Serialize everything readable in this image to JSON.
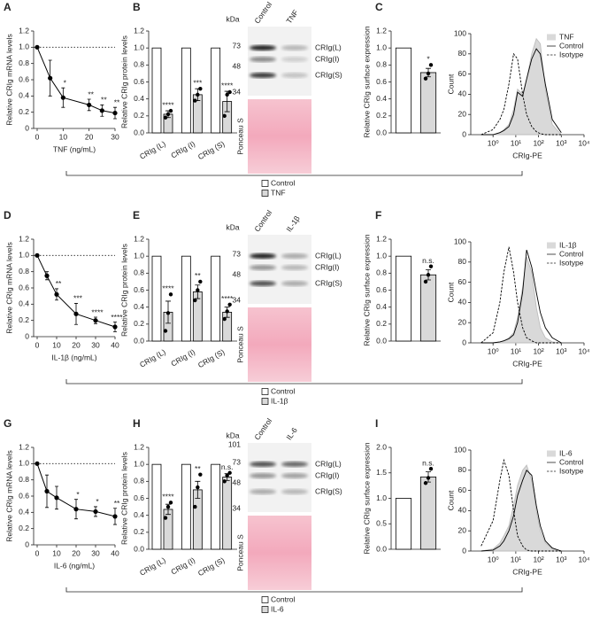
{
  "chart_data": [
    {
      "panel": "A",
      "type": "line",
      "x": [
        0,
        5,
        10,
        20,
        25,
        30
      ],
      "values": [
        1,
        0.62,
        0.38,
        0.29,
        0.22,
        0.19
      ],
      "errors": [
        0,
        0.22,
        0.12,
        0.07,
        0.07,
        0.07
      ],
      "annotations": [
        null,
        null,
        "*",
        "**",
        "**",
        "**"
      ],
      "color": "#000000",
      "reference_line": 1,
      "xlim": [
        0,
        30
      ],
      "xticks": [
        0,
        10,
        20,
        30
      ],
      "ylim": [
        0,
        1.2
      ],
      "yticks": [
        0,
        0.2,
        0.4,
        0.6,
        0.8,
        {
          "value": 1,
          "label": "1.0"
        },
        1.2
      ],
      "xlabel": "TNF (ng/mL)",
      "ylabel": "Relative CRIg mRNA levels"
    },
    {
      "panel": "B",
      "type": "bar",
      "categories": [
        "CRIg (L)",
        "CRIg (I)",
        "CRIg (S)"
      ],
      "series": [
        {
          "name": "Control",
          "color": "#ffffff",
          "values": [
            1,
            1,
            1
          ]
        },
        {
          "name": "TNF",
          "color": "#d9d9d9",
          "values": [
            0.22,
            0.45,
            0.37
          ],
          "errors": [
            0.04,
            0.07,
            0.12
          ],
          "points": [
            [
              0.18,
              0.22,
              0.26
            ],
            [
              0.38,
              0.45,
              0.52
            ],
            [
              0.2,
              0.45,
              0.48
            ]
          ],
          "annotations": [
            "****",
            "***",
            "****"
          ]
        }
      ],
      "ylim": [
        0,
        1.2
      ],
      "yticks": [
        {
          "value": 0,
          "label": "0.0"
        },
        0.2,
        0.4,
        0.6,
        0.8,
        {
          "value": 1,
          "label": "1.0"
        },
        1.2
      ],
      "ylabel": "Relative CRIg protein levels",
      "legend": "bottom"
    },
    {
      "panel": "C",
      "type": "bar",
      "categories": [
        null,
        null
      ],
      "values": [
        1,
        0.71
      ],
      "colors": [
        "#ffffff",
        "#d9d9d9"
      ],
      "errors": [
        null,
        0.05
      ],
      "points": [
        null,
        [
          0.64,
          0.7,
          0.8
        ]
      ],
      "annotations": [
        null,
        "*"
      ],
      "ylim": [
        0,
        1.2
      ],
      "yticks": [
        {
          "value": 0,
          "label": "0.0"
        },
        0.2,
        0.4,
        0.6,
        0.8,
        {
          "value": 1,
          "label": "1.0"
        },
        1.2
      ],
      "ylabel": "Relative CRIg surface expression"
    },
    {
      "type": "line",
      "xscale": "log",
      "x": [
        0.3,
        1,
        2,
        3,
        5,
        8,
        12,
        20,
        30,
        50,
        80,
        120,
        200,
        400,
        1000
      ],
      "series": [
        {
          "name": "TNF",
          "style": "area",
          "color": "#d9d9d9",
          "values": [
            0,
            0,
            2,
            5,
            10,
            25,
            45,
            40,
            55,
            80,
            95,
            90,
            45,
            10,
            0
          ]
        },
        {
          "name": "Control",
          "style": "solid",
          "color": "#000000",
          "values": [
            0,
            0,
            2,
            4,
            8,
            20,
            42,
            38,
            55,
            75,
            85,
            80,
            50,
            15,
            2
          ]
        },
        {
          "name": "Isotype",
          "style": "dashed",
          "color": "#000000",
          "values": [
            0,
            5,
            15,
            25,
            50,
            80,
            75,
            40,
            20,
            8,
            3,
            1,
            0,
            0,
            0
          ]
        }
      ],
      "xlim": [
        0.15,
        10000
      ],
      "xticks": [
        {
          "value": 1,
          "label": "10⁰"
        },
        {
          "value": 10,
          "label": "10¹"
        },
        {
          "value": 100,
          "label": "10²"
        },
        {
          "value": 1000,
          "label": "10³"
        },
        {
          "value": 10000,
          "label": "10⁴"
        }
      ],
      "ylim": [
        0,
        100
      ],
      "yticks": [
        0,
        20,
        40,
        60,
        80,
        100
      ],
      "xlabel": "CRIg-PE",
      "ylabel": "Count",
      "legend": "upper right"
    },
    {
      "panel": "D",
      "type": "line",
      "x": [
        0,
        5,
        10,
        20,
        30,
        40
      ],
      "values": [
        1,
        0.75,
        0.52,
        0.28,
        0.2,
        0.12
      ],
      "errors": [
        0,
        0.05,
        0.07,
        0.13,
        0.04,
        0.06
      ],
      "annotations": [
        null,
        null,
        "**",
        "***",
        "****",
        "****"
      ],
      "color": "#000000",
      "reference_line": 1,
      "xlim": [
        0,
        40
      ],
      "xticks": [
        0,
        10,
        20,
        30,
        40
      ],
      "ylim": [
        0,
        1.2
      ],
      "yticks": [
        0,
        0.2,
        0.4,
        0.6,
        0.8,
        {
          "value": 1,
          "label": "1.0"
        },
        1.2
      ],
      "xlabel": "IL-1β (ng/mL)",
      "ylabel": "Relative CRIg mRNA levels"
    },
    {
      "panel": "E",
      "type": "bar",
      "categories": [
        "CRIg (L)",
        "CRIg (I)",
        "CRIg (S)"
      ],
      "series": [
        {
          "name": "Control",
          "color": "#ffffff",
          "values": [
            1,
            1,
            1
          ]
        },
        {
          "name": "IL-1β",
          "color": "#d9d9d9",
          "values": [
            0.34,
            0.58,
            0.34
          ],
          "errors": [
            0.13,
            0.08,
            0.06
          ],
          "points": [
            [
              0.12,
              0.33,
              0.55
            ],
            [
              0.48,
              0.6,
              0.7
            ],
            [
              0.26,
              0.35,
              0.43
            ]
          ],
          "annotations": [
            "****",
            "**",
            "****"
          ]
        }
      ],
      "ylim": [
        0,
        1.2
      ],
      "yticks": [
        {
          "value": 0,
          "label": "0.0"
        },
        0.2,
        0.4,
        0.6,
        0.8,
        {
          "value": 1,
          "label": "1.0"
        },
        1.2
      ],
      "ylabel": "Relative CRIg protein levels",
      "legend": "bottom"
    },
    {
      "panel": "F",
      "type": "bar",
      "categories": [
        null,
        null
      ],
      "values": [
        1,
        0.78
      ],
      "colors": [
        "#ffffff",
        "#d9d9d9"
      ],
      "errors": [
        null,
        0.06
      ],
      "points": [
        null,
        [
          0.7,
          0.78,
          0.88
        ]
      ],
      "annotations": [
        null,
        "n.s."
      ],
      "ylim": [
        0,
        1.2
      ],
      "yticks": [
        {
          "value": 0,
          "label": "0.0"
        },
        0.2,
        0.4,
        0.6,
        0.8,
        {
          "value": 1,
          "label": "1.0"
        },
        1.2
      ],
      "ylabel": "Relative CRIg surface expression"
    },
    {
      "type": "line",
      "xscale": "log",
      "x": [
        0.3,
        1,
        2,
        3,
        5,
        8,
        12,
        20,
        30,
        50,
        80,
        120,
        200,
        400,
        1000
      ],
      "series": [
        {
          "name": "IL-1β",
          "style": "area",
          "color": "#d9d9d9",
          "values": [
            0,
            0,
            1,
            2,
            5,
            10,
            25,
            55,
            85,
            70,
            35,
            15,
            5,
            1,
            0
          ]
        },
        {
          "name": "Control",
          "style": "solid",
          "color": "#000000",
          "values": [
            0,
            0,
            1,
            2,
            4,
            8,
            20,
            50,
            92,
            75,
            50,
            30,
            15,
            5,
            0
          ]
        },
        {
          "name": "Isotype",
          "style": "dashed",
          "color": "#000000",
          "values": [
            0,
            10,
            40,
            70,
            95,
            70,
            40,
            15,
            5,
            2,
            0,
            0,
            0,
            0,
            0
          ]
        }
      ],
      "xlim": [
        0.15,
        10000
      ],
      "xticks": [
        {
          "value": 1,
          "label": "10⁰"
        },
        {
          "value": 10,
          "label": "10¹"
        },
        {
          "value": 100,
          "label": "10²"
        },
        {
          "value": 1000,
          "label": "10³"
        },
        {
          "value": 10000,
          "label": "10⁴"
        }
      ],
      "ylim": [
        0,
        100
      ],
      "yticks": [
        0,
        20,
        40,
        60,
        80,
        100
      ],
      "xlabel": "CRIg-PE",
      "ylabel": "Count",
      "legend": "upper right"
    },
    {
      "panel": "G",
      "type": "line",
      "x": [
        0,
        5,
        10,
        20,
        30,
        40
      ],
      "values": [
        1,
        0.66,
        0.58,
        0.44,
        0.41,
        0.35
      ],
      "errors": [
        0,
        0.2,
        0.14,
        0.12,
        0.06,
        0.1
      ],
      "annotations": [
        null,
        null,
        null,
        "*",
        "*",
        "**"
      ],
      "color": "#000000",
      "reference_line": 1,
      "xlim": [
        0,
        40
      ],
      "xticks": [
        0,
        10,
        20,
        30,
        40
      ],
      "ylim": [
        0,
        1.2
      ],
      "yticks": [
        0,
        0.2,
        0.4,
        0.6,
        0.8,
        {
          "value": 1,
          "label": "1.0"
        },
        1.2
      ],
      "xlabel": "IL-6 (ng/mL)",
      "ylabel": "Relative CRIg mRNA levels"
    },
    {
      "panel": "H",
      "type": "bar",
      "categories": [
        "CRIg (L)",
        "CRIg (I)",
        "CRIg (S)"
      ],
      "series": [
        {
          "name": "Control",
          "color": "#ffffff",
          "values": [
            1,
            1,
            1
          ]
        },
        {
          "name": "IL-6",
          "color": "#d9d9d9",
          "values": [
            0.47,
            0.7,
            0.85
          ],
          "errors": [
            0.06,
            0.1,
            0.04
          ],
          "points": [
            [
              0.37,
              0.5,
              0.55
            ],
            [
              0.5,
              0.73,
              0.88
            ],
            [
              0.8,
              0.87,
              0.9
            ]
          ],
          "annotations": [
            "****",
            "**",
            "n.s."
          ]
        }
      ],
      "ylim": [
        0,
        1.2
      ],
      "yticks": [
        {
          "value": 0,
          "label": "0.0"
        },
        0.2,
        0.4,
        0.6,
        0.8,
        {
          "value": 1,
          "label": "1.0"
        },
        1.2
      ],
      "ylabel": "Relative CRIg protein levels",
      "legend": "bottom"
    },
    {
      "panel": "I",
      "type": "bar",
      "categories": [
        null,
        null
      ],
      "values": [
        1,
        1.42
      ],
      "colors": [
        "#ffffff",
        "#d9d9d9"
      ],
      "errors": [
        null,
        0.1
      ],
      "points": [
        null,
        [
          1.3,
          1.4,
          1.58
        ]
      ],
      "annotations": [
        null,
        "n.s."
      ],
      "ylim": [
        0,
        2
      ],
      "yticks": [
        {
          "value": 0,
          "label": "0.0"
        },
        0.5,
        {
          "value": 1,
          "label": "1.0"
        },
        1.5,
        {
          "value": 2,
          "label": "2.0"
        }
      ],
      "ylabel": "Relative CRIg surface expression"
    },
    {
      "type": "line",
      "xscale": "log",
      "x": [
        0.3,
        1,
        2,
        3,
        5,
        8,
        12,
        20,
        30,
        50,
        80,
        120,
        200,
        400,
        1000
      ],
      "series": [
        {
          "name": "IL-6",
          "style": "area",
          "color": "#d9d9d9",
          "values": [
            0,
            2,
            8,
            15,
            25,
            45,
            65,
            80,
            85,
            70,
            40,
            20,
            8,
            2,
            0
          ]
        },
        {
          "name": "Control",
          "style": "solid",
          "color": "#000000",
          "values": [
            0,
            1,
            5,
            10,
            20,
            35,
            55,
            70,
            80,
            75,
            45,
            25,
            10,
            3,
            0
          ]
        },
        {
          "name": "Isotype",
          "style": "dashed",
          "color": "#000000",
          "values": [
            5,
            30,
            70,
            90,
            75,
            40,
            15,
            5,
            1,
            0,
            0,
            0,
            0,
            0,
            0
          ]
        }
      ],
      "xlim": [
        0.15,
        10000
      ],
      "xticks": [
        {
          "value": 1,
          "label": "10⁰"
        },
        {
          "value": 10,
          "label": "10¹"
        },
        {
          "value": 100,
          "label": "10²"
        },
        {
          "value": 1000,
          "label": "10³"
        },
        {
          "value": 10000,
          "label": "10⁴"
        }
      ],
      "ylim": [
        0,
        100
      ],
      "yticks": [
        0,
        20,
        40,
        60,
        80,
        100
      ],
      "xlabel": "CRIg-PE",
      "ylabel": "Count",
      "legend": "upper right"
    }
  ],
  "blots": [
    {
      "unit": "kDa",
      "markers": [
        "73",
        "48",
        "34"
      ],
      "lanes": [
        "Control",
        "TNF"
      ],
      "bands": [
        "CRIg(L)",
        "CRIg(I)",
        "CRIg(S)"
      ],
      "stain": "Ponceau S"
    },
    {
      "unit": "kDa",
      "markers": [
        "73",
        "48",
        "34"
      ],
      "lanes": [
        "Control",
        "IL-1β"
      ],
      "bands": [
        "CRIg(L)",
        "CRIg(I)",
        "CRIg(S)"
      ],
      "stain": "Ponceau S"
    },
    {
      "unit": "kDa",
      "markers": [
        "101",
        "73",
        "48",
        "34"
      ],
      "lanes": [
        "Control",
        "IL-6"
      ],
      "bands": [
        "CRIg(L)",
        "CRIg(I)",
        "CRIg(S)"
      ],
      "stain": "Ponceau S"
    }
  ]
}
